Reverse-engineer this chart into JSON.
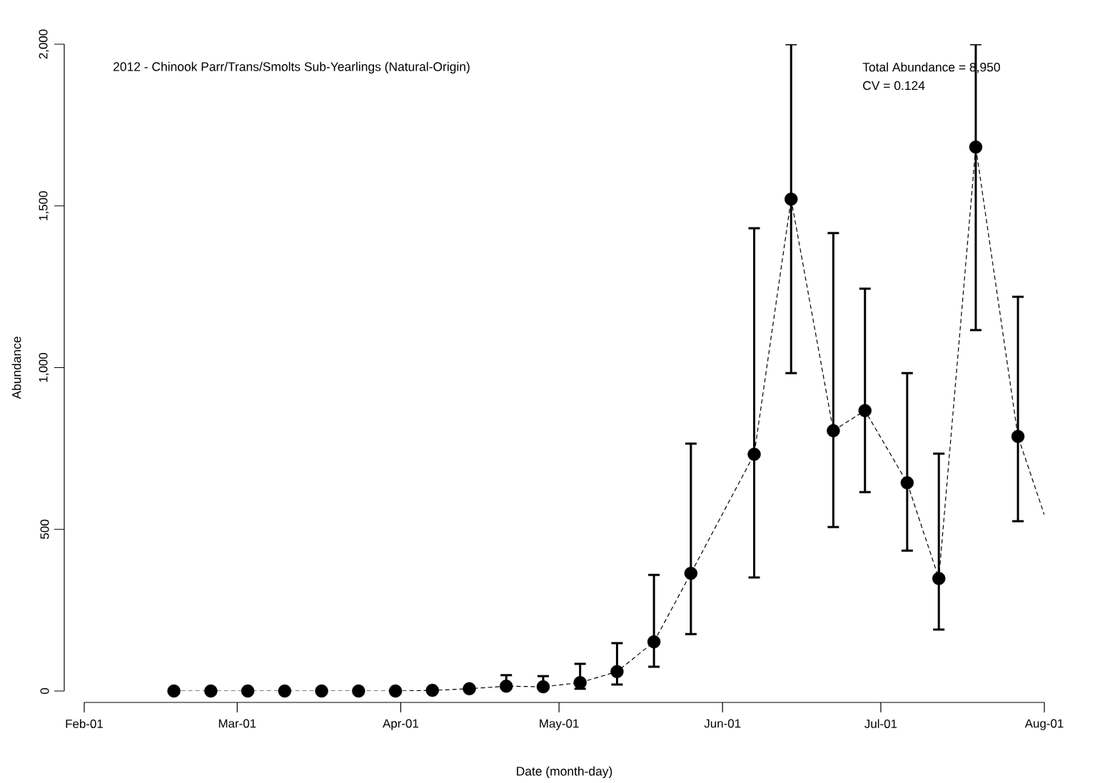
{
  "chart_data": {
    "type": "scatter",
    "title": "2012 - Chinook Parr/Trans/Smolts Sub-Yearlings (Natural-Origin)",
    "xlabel": "Date (month-day)",
    "ylabel": "Abundance",
    "annotations": [
      "Total Abundance = 8,950",
      "CV = 0.124"
    ],
    "xlim": [
      "2012-02-01",
      "2012-08-01"
    ],
    "xticks": [
      {
        "value": "2012-02-01",
        "label": "Feb-01"
      },
      {
        "value": "2012-03-01",
        "label": "Mar-01"
      },
      {
        "value": "2012-04-01",
        "label": "Apr-01"
      },
      {
        "value": "2012-05-01",
        "label": "May-01"
      },
      {
        "value": "2012-06-01",
        "label": "Jun-01"
      },
      {
        "value": "2012-07-01",
        "label": "Jul-01"
      },
      {
        "value": "2012-08-01",
        "label": "Aug-01"
      }
    ],
    "ylim": [
      0,
      2000
    ],
    "yticks": [
      0,
      500,
      {
        "value": 1000,
        "label": "1,000"
      },
      {
        "value": 1500,
        "label": "1,500"
      },
      {
        "value": 2000,
        "label": "2,000"
      }
    ],
    "series": [
      {
        "type": "line",
        "color": "#000000",
        "line_style": "dashed",
        "marker": "none",
        "x": [
          "2012-02-18",
          "2012-02-25",
          "2012-03-03",
          "2012-03-10",
          "2012-03-17",
          "2012-03-24",
          "2012-03-31",
          "2012-04-07",
          "2012-04-14",
          "2012-04-21",
          "2012-04-28",
          "2012-05-05",
          "2012-05-12",
          "2012-05-19",
          "2012-05-26",
          "2012-06-07",
          "2012-06-14",
          "2012-06-22",
          "2012-06-28",
          "2012-07-06",
          "2012-07-12",
          "2012-07-19",
          "2012-07-27",
          "2012-08-01"
        ],
        "values": [
          0,
          0,
          0,
          0,
          0,
          0,
          0,
          2,
          7,
          15,
          13,
          26,
          60,
          152,
          364,
          732,
          1521,
          805,
          867,
          644,
          348,
          1682,
          787,
          545
        ]
      },
      {
        "color": "#000000",
        "marker": "circle",
        "x": [
          "2012-02-18",
          "2012-02-25",
          "2012-03-03",
          "2012-03-10",
          "2012-03-17",
          "2012-03-24",
          "2012-03-31",
          "2012-04-07",
          "2012-04-14",
          "2012-04-21",
          "2012-04-28",
          "2012-05-05",
          "2012-05-12",
          "2012-05-19",
          "2012-05-26",
          "2012-06-07",
          "2012-06-14",
          "2012-06-22",
          "2012-06-28",
          "2012-07-06",
          "2012-07-12",
          "2012-07-19",
          "2012-07-27"
        ],
        "values": [
          0,
          0,
          0,
          0,
          0,
          0,
          0,
          2,
          7,
          15,
          13,
          26,
          60,
          152,
          364,
          732,
          1521,
          805,
          867,
          644,
          348,
          1682,
          787
        ],
        "errors": [
          null,
          null,
          null,
          null,
          null,
          null,
          null,
          null,
          null,
          [
            15,
            49
          ],
          [
            13,
            46
          ],
          [
            7,
            84
          ],
          [
            20,
            148
          ],
          [
            75,
            359
          ],
          [
            176,
            765
          ],
          [
            351,
            1431
          ],
          [
            983,
            2000
          ],
          [
            507,
            1416
          ],
          [
            615,
            1244
          ],
          [
            434,
            983
          ],
          [
            190,
            734
          ],
          [
            1116,
            2000
          ],
          [
            525,
            1219
          ]
        ]
      }
    ]
  }
}
